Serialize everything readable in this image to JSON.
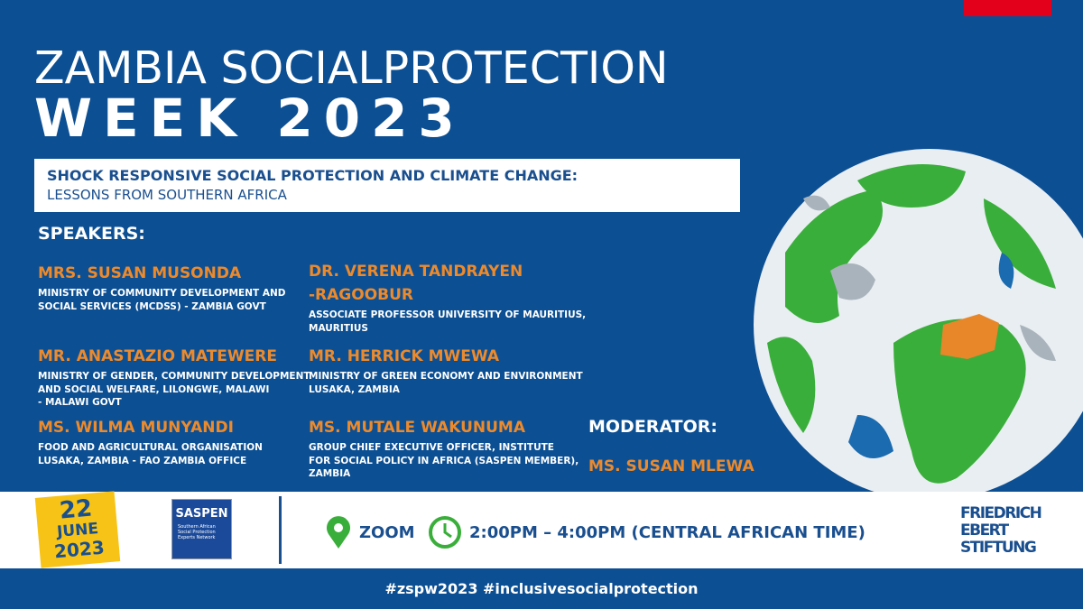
{
  "header": {
    "title_line1": "ZAMBIA SOCIALPROTECTION",
    "title_line2": "WEEK 2023"
  },
  "topic": {
    "line1": "SHOCK RESPONSIVE SOCIAL PROTECTION AND CLIMATE CHANGE:",
    "line2": "LESSONS FROM SOUTHERN AFRICA"
  },
  "speakers_label": "SPEAKERS:",
  "speakers": [
    {
      "name": [
        "MRS. SUSAN MUSONDA"
      ],
      "affiliation": [
        "MINISTRY OF COMMUNITY DEVELOPMENT AND",
        "SOCIAL SERVICES (MCDSS) - ZAMBIA GOVT"
      ]
    },
    {
      "name": [
        "DR. VERENA TANDRAYEN",
        "-RAGOOBUR"
      ],
      "affiliation": [
        "ASSOCIATE PROFESSOR UNIVERSITY OF MAURITIUS,",
        "MAURITIUS"
      ]
    },
    {
      "name": [
        "MR. ANASTAZIO MATEWERE"
      ],
      "affiliation": [
        "MINISTRY OF GENDER, COMMUNITY DEVELOPMENT",
        "AND SOCIAL WELFARE, LILONGWE, MALAWI",
        "- MALAWI GOVT"
      ]
    },
    {
      "name": [
        "MR. HERRICK MWEWA"
      ],
      "affiliation": [
        "MINISTRY OF GREEN ECONOMY AND ENVIRONMENT",
        "LUSAKA, ZAMBIA"
      ]
    },
    {
      "name": [
        "MS. WILMA MUNYANDI"
      ],
      "affiliation": [
        "FOOD AND AGRICULTURAL ORGANISATION",
        "LUSAKA,  ZAMBIA - FAO ZAMBIA OFFICE"
      ]
    },
    {
      "name": [
        "MS. MUTALE WAKUNUMA"
      ],
      "affiliation": [
        "GROUP CHIEF EXECUTIVE OFFICER, INSTITUTE",
        "FOR SOCIAL POLICY IN AFRICA (SASPEN MEMBER),",
        "ZAMBIA"
      ]
    }
  ],
  "moderator": {
    "label": "MODERATOR:",
    "name": "MS. SUSAN MLEWA"
  },
  "date": {
    "day": "22",
    "month": "JUNE",
    "year": "2023"
  },
  "saspen": {
    "name": "SASPEN",
    "tagline": [
      "Southern African",
      "Social Protection",
      "Experts Network"
    ]
  },
  "venue": "ZOOM",
  "time": "2:00PM – 4:00PM (CENTRAL AFRICAN TIME)",
  "fes": [
    "FRIEDRICH",
    "EBERT",
    "STIFTUNG"
  ],
  "hashtags": "#zspw2023 #inclusivesocialprotection"
}
